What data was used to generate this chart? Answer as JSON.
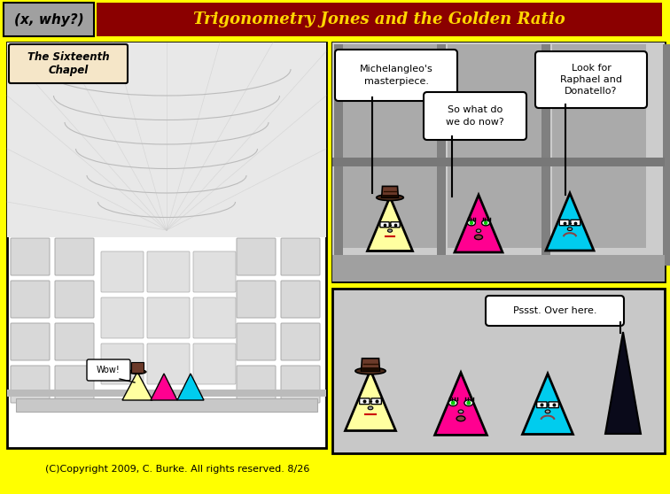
{
  "bg_color": "#FFFF00",
  "title": "Trigonometry Jones and the Golden Ratio",
  "title_color": "#FFD700",
  "title_bg": "#8B0000",
  "header_label": "(x, why?)",
  "header_bg": "#A0A0A0",
  "copyright": "(C)Copyright 2009, C. Burke. All rights reserved. 8/26",
  "panel1_label": "The Sixteenth\nChapel",
  "panel1_wow": "Wow!",
  "bubble1": "Michelangleo's\nmasterpiece.",
  "bubble2": "So what do\nwe do now?",
  "bubble3": "Look for\nRaphael and\nDonatello?",
  "bubble4": "Pssst. Over here.",
  "yellow_color": "#FFFFA0",
  "magenta_color": "#FF0090",
  "cyan_color": "#00CCEE",
  "hat_color": "#6B3A2A",
  "hat_brim": "#4A2A1A",
  "hat_band": "#1A0A00",
  "panel1_bg": "#F0F0F0",
  "panel2_bg": "#C0C0C0",
  "panel3_bg": "#C8C8C8",
  "wall_dark": "#808080",
  "wall_mid": "#A0A0A0",
  "wall_light": "#D0D0D0",
  "wall_panel": "#B8B8B8",
  "floor_bar": "#787878"
}
